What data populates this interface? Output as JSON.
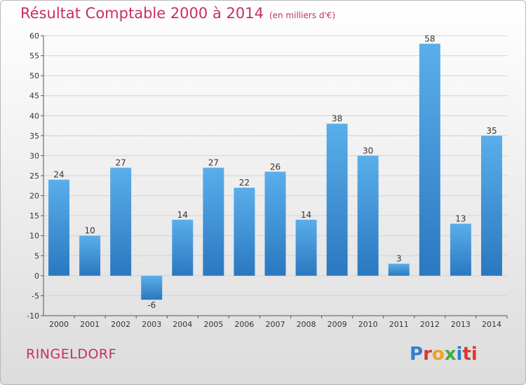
{
  "header": {
    "title": "Résultat Comptable 2000 à 2014",
    "unit": "(en milliers d'€)"
  },
  "footer": {
    "town": "RINGELDORF",
    "logo_letters": [
      "P",
      "r",
      "o",
      "x",
      "i",
      "ti"
    ]
  },
  "chart_data": {
    "type": "bar",
    "title": "Résultat Comptable 2000 à 2014",
    "categories": [
      "2000",
      "2001",
      "2002",
      "2003",
      "2004",
      "2005",
      "2006",
      "2007",
      "2008",
      "2009",
      "2010",
      "2011",
      "2012",
      "2013",
      "2014"
    ],
    "values": [
      24,
      10,
      27,
      -6,
      14,
      27,
      22,
      26,
      14,
      38,
      30,
      3,
      58,
      13,
      35
    ],
    "data_labels": [
      "24",
      "10",
      "27",
      "-6",
      "14",
      "27",
      "22",
      "26",
      "14",
      "38",
      "30",
      "3",
      "58",
      "13",
      "35"
    ],
    "ylim": [
      -10,
      60
    ],
    "yticks": [
      -10,
      -5,
      0,
      5,
      10,
      15,
      20,
      25,
      30,
      35,
      40,
      45,
      50,
      55,
      60
    ],
    "ytick_labels": [
      "-10",
      "-5",
      "0",
      "5",
      "10",
      "15",
      "20",
      "25",
      "30",
      "35",
      "40",
      "45",
      "50",
      "55",
      "60"
    ],
    "grid": true,
    "colors": {
      "bar_top": "#5aaeea",
      "bar_bottom": "#2a78c0",
      "grid": "#d2d2d2",
      "axis": "#555555",
      "title": "#c8305e"
    }
  }
}
